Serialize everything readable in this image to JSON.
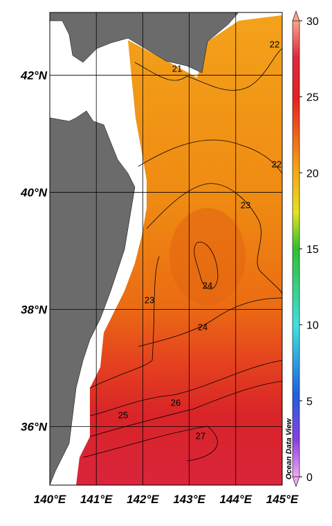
{
  "map": {
    "lon_range": [
      140,
      145
    ],
    "lat_range": [
      35,
      43.07
    ],
    "lon_ticks": [
      {
        "value": 140,
        "label": "140°E"
      },
      {
        "value": 141,
        "label": "141°E"
      },
      {
        "value": 142,
        "label": "142°E"
      },
      {
        "value": 143,
        "label": "143°E"
      },
      {
        "value": 144,
        "label": "144°E"
      },
      {
        "value": 145,
        "label": "145°E"
      }
    ],
    "lat_ticks": [
      {
        "value": 36,
        "label": "36°N"
      },
      {
        "value": 38,
        "label": "38°N"
      },
      {
        "value": 40,
        "label": "40°N"
      },
      {
        "value": 42,
        "label": "42°N"
      }
    ],
    "colorbar": {
      "range": [
        0,
        30
      ],
      "ticks": [
        0,
        5,
        10,
        15,
        20,
        25,
        30
      ]
    },
    "contour_labels": [
      21,
      22,
      22,
      23,
      23,
      24,
      24,
      25,
      26,
      27
    ],
    "watermark": "Ocean Data View"
  }
}
